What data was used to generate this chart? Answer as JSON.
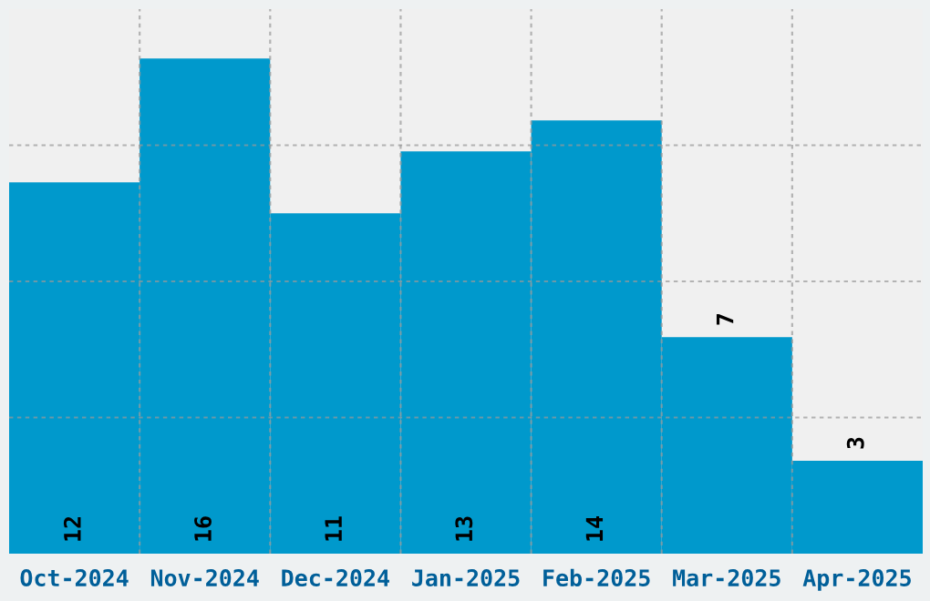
{
  "chart_data": {
    "type": "bar",
    "categories": [
      "Oct-2024",
      "Nov-2024",
      "Dec-2024",
      "Jan-2025",
      "Feb-2025",
      "Mar-2025",
      "Apr-2025"
    ],
    "values": [
      12,
      16,
      11,
      13,
      14,
      7,
      3
    ],
    "color": "#0099cc",
    "ylim": [
      0,
      17.6
    ],
    "yticks": [
      {
        "value": 4.4,
        "label": null
      },
      {
        "value": 8.8,
        "label": null
      },
      {
        "value": 13.2,
        "label": null
      }
    ],
    "tick_labels": "x",
    "grid": true,
    "data_labels": true
  }
}
